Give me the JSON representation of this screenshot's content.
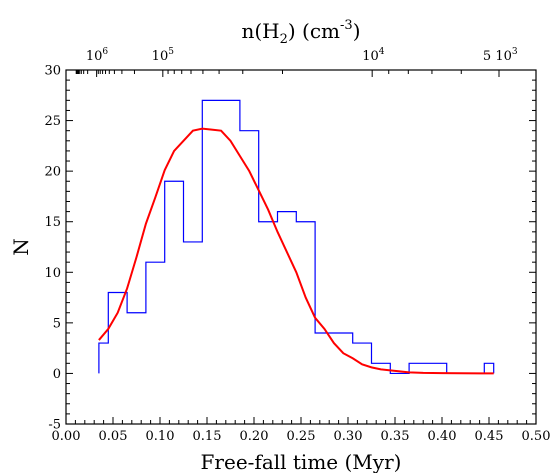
{
  "chart_data": {
    "type": "histogram",
    "xlabel": "Free-fall time (Myr)",
    "ylabel": "N",
    "top_axis": {
      "label_main": "n(H",
      "label_sub": "2",
      "label_mid": ") (cm",
      "label_sup": "-3",
      "label_end": ")",
      "tick_labels": [
        {
          "x": 0.033,
          "base": "10",
          "exp": "6"
        },
        {
          "x": 0.103,
          "base": "10",
          "exp": "5"
        },
        {
          "x": 0.327,
          "base": "10",
          "exp": "4"
        },
        {
          "x": 0.462,
          "base": "5 10",
          "exp": "3"
        }
      ]
    },
    "xlim": [
      0.0,
      0.5
    ],
    "ylim": [
      -5,
      30
    ],
    "x_ticks": [
      "0.00",
      "0.05",
      "0.10",
      "0.15",
      "0.20",
      "0.25",
      "0.30",
      "0.35",
      "0.40",
      "0.45",
      "0.50"
    ],
    "y_ticks": [
      "-5",
      "0",
      "5",
      "10",
      "15",
      "20",
      "25",
      "30"
    ],
    "histogram": {
      "color": "#0000ff",
      "bin_edges": [
        0.035,
        0.045,
        0.065,
        0.085,
        0.105,
        0.125,
        0.145,
        0.185,
        0.205,
        0.225,
        0.245,
        0.265,
        0.305,
        0.325,
        0.345,
        0.365,
        0.405,
        0.445,
        0.455
      ],
      "counts": [
        3,
        8,
        6,
        11,
        19,
        13,
        27,
        24,
        15,
        16,
        15,
        4,
        3,
        1,
        0,
        1,
        0,
        1
      ]
    },
    "fit_curve": {
      "color": "#ff0000",
      "x": [
        0.035,
        0.045,
        0.055,
        0.065,
        0.075,
        0.085,
        0.095,
        0.105,
        0.115,
        0.125,
        0.135,
        0.145,
        0.155,
        0.165,
        0.175,
        0.185,
        0.195,
        0.205,
        0.215,
        0.225,
        0.235,
        0.245,
        0.255,
        0.265,
        0.275,
        0.285,
        0.295,
        0.305,
        0.315,
        0.325,
        0.335,
        0.345,
        0.355,
        0.365,
        0.38,
        0.4,
        0.42,
        0.44,
        0.455
      ],
      "y": [
        3.3,
        4.4,
        6.0,
        8.4,
        11.5,
        14.8,
        17.4,
        20.1,
        22.0,
        23.0,
        24.0,
        24.2,
        24.1,
        24.0,
        23.0,
        21.5,
        20.0,
        18.1,
        16.2,
        14.0,
        12.0,
        10.0,
        7.5,
        5.5,
        4.4,
        3.0,
        2.0,
        1.5,
        0.9,
        0.6,
        0.4,
        0.3,
        0.2,
        0.1,
        0.05,
        0.03,
        0.02,
        0.01,
        0.01
      ]
    }
  }
}
